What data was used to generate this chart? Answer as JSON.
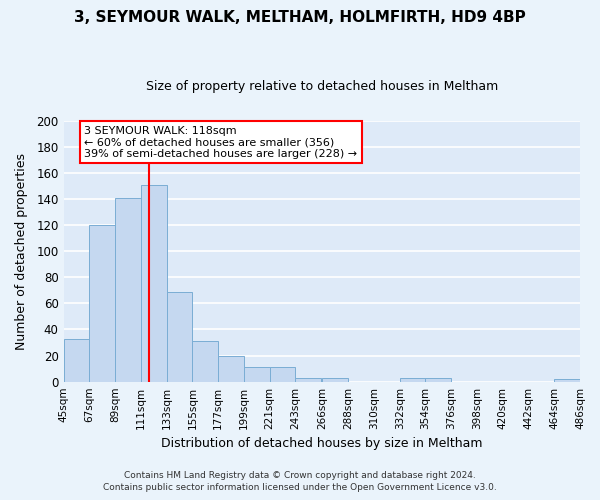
{
  "title": "3, SEYMOUR WALK, MELTHAM, HOLMFIRTH, HD9 4BP",
  "subtitle": "Size of property relative to detached houses in Meltham",
  "xlabel": "Distribution of detached houses by size in Meltham",
  "ylabel": "Number of detached properties",
  "bar_color": "#c5d8f0",
  "bar_edge_color": "#7aadd4",
  "fig_bg_color": "#eaf3fb",
  "axes_bg_color": "#deeaf8",
  "grid_color": "#ffffff",
  "vline_x": 118,
  "vline_color": "red",
  "bin_edges": [
    45,
    67,
    89,
    111,
    133,
    155,
    177,
    199,
    221,
    243,
    266,
    288,
    310,
    332,
    354,
    376,
    398,
    420,
    442,
    464,
    486
  ],
  "bin_labels": [
    "45sqm",
    "67sqm",
    "89sqm",
    "111sqm",
    "133sqm",
    "155sqm",
    "177sqm",
    "199sqm",
    "221sqm",
    "243sqm",
    "266sqm",
    "288sqm",
    "310sqm",
    "332sqm",
    "354sqm",
    "376sqm",
    "398sqm",
    "420sqm",
    "442sqm",
    "464sqm",
    "486sqm"
  ],
  "counts": [
    33,
    120,
    141,
    151,
    69,
    31,
    20,
    11,
    11,
    3,
    3,
    0,
    0,
    3,
    3,
    0,
    0,
    0,
    0,
    2
  ],
  "ylim": [
    0,
    200
  ],
  "yticks": [
    0,
    20,
    40,
    60,
    80,
    100,
    120,
    140,
    160,
    180,
    200
  ],
  "annotation_title": "3 SEYMOUR WALK: 118sqm",
  "annotation_line1": "← 60% of detached houses are smaller (356)",
  "annotation_line2": "39% of semi-detached houses are larger (228) →",
  "annotation_box_color": "#ffffff",
  "annotation_box_edge": "red",
  "footer1": "Contains HM Land Registry data © Crown copyright and database right 2024.",
  "footer2": "Contains public sector information licensed under the Open Government Licence v3.0."
}
